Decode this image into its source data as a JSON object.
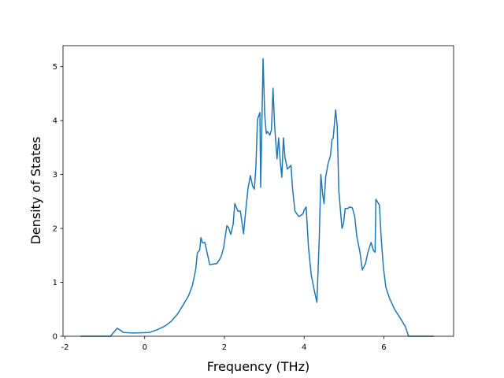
{
  "chart_data": {
    "type": "line",
    "xlabel": "Frequency (THz)",
    "ylabel": "Density of States",
    "xlim": [
      -2.05,
      7.75
    ],
    "ylim": [
      0,
      5.39
    ],
    "xticks": [
      -2,
      0,
      2,
      4,
      6
    ],
    "yticks": [
      0,
      1,
      2,
      3,
      4,
      5
    ],
    "series": [
      {
        "color": "#1f77b4",
        "x": [
          -1.61,
          -0.86,
          -0.69,
          -0.53,
          -0.28,
          0.12,
          0.31,
          0.51,
          0.67,
          0.83,
          0.98,
          1.1,
          1.2,
          1.28,
          1.32,
          1.38,
          1.41,
          1.45,
          1.51,
          1.63,
          1.81,
          1.91,
          1.98,
          2.06,
          2.1,
          2.16,
          2.22,
          2.26,
          2.34,
          2.4,
          2.48,
          2.53,
          2.59,
          2.65,
          2.71,
          2.75,
          2.79,
          2.83,
          2.89,
          2.91,
          2.97,
          3.01,
          3.05,
          3.08,
          3.14,
          3.18,
          3.22,
          3.26,
          3.32,
          3.36,
          3.4,
          3.44,
          3.48,
          3.52,
          3.58,
          3.63,
          3.67,
          3.71,
          3.77,
          3.87,
          3.97,
          4.0,
          4.05,
          4.11,
          4.18,
          4.26,
          4.32,
          4.38,
          4.42,
          4.46,
          4.5,
          4.54,
          4.6,
          4.66,
          4.7,
          4.73,
          4.79,
          4.83,
          4.87,
          4.95,
          4.99,
          5.03,
          5.09,
          5.15,
          5.21,
          5.27,
          5.32,
          5.4,
          5.46,
          5.54,
          5.6,
          5.68,
          5.74,
          5.78,
          5.8,
          5.89,
          5.93,
          5.99,
          6.05,
          6.15,
          6.27,
          6.4,
          6.54,
          6.62,
          6.99,
          7.25
        ],
        "values": [
          0,
          0,
          0.15,
          0.07,
          0.06,
          0.07,
          0.12,
          0.19,
          0.28,
          0.42,
          0.6,
          0.75,
          0.95,
          1.24,
          1.54,
          1.6,
          1.83,
          1.73,
          1.74,
          1.33,
          1.35,
          1.46,
          1.64,
          2.05,
          2.02,
          1.89,
          2.08,
          2.46,
          2.32,
          2.32,
          1.9,
          2.3,
          2.73,
          2.98,
          2.78,
          2.73,
          3.14,
          4.02,
          4.15,
          2.76,
          5.15,
          4.12,
          3.76,
          3.8,
          3.73,
          3.83,
          4.6,
          3.9,
          3.29,
          3.68,
          3.25,
          2.95,
          3.68,
          3.32,
          3.1,
          3.14,
          3.17,
          2.73,
          2.32,
          2.22,
          2.27,
          2.34,
          2.4,
          1.64,
          1.13,
          0.83,
          0.63,
          1.83,
          3.0,
          2.66,
          2.46,
          2.95,
          3.2,
          3.35,
          3.65,
          3.68,
          4.2,
          3.9,
          2.7,
          2.0,
          2.1,
          2.37,
          2.37,
          2.4,
          2.38,
          2.22,
          1.86,
          1.56,
          1.23,
          1.35,
          1.56,
          1.74,
          1.59,
          1.56,
          2.54,
          2.43,
          1.86,
          1.27,
          0.91,
          0.69,
          0.5,
          0.35,
          0.18,
          0,
          0,
          0
        ]
      }
    ]
  }
}
